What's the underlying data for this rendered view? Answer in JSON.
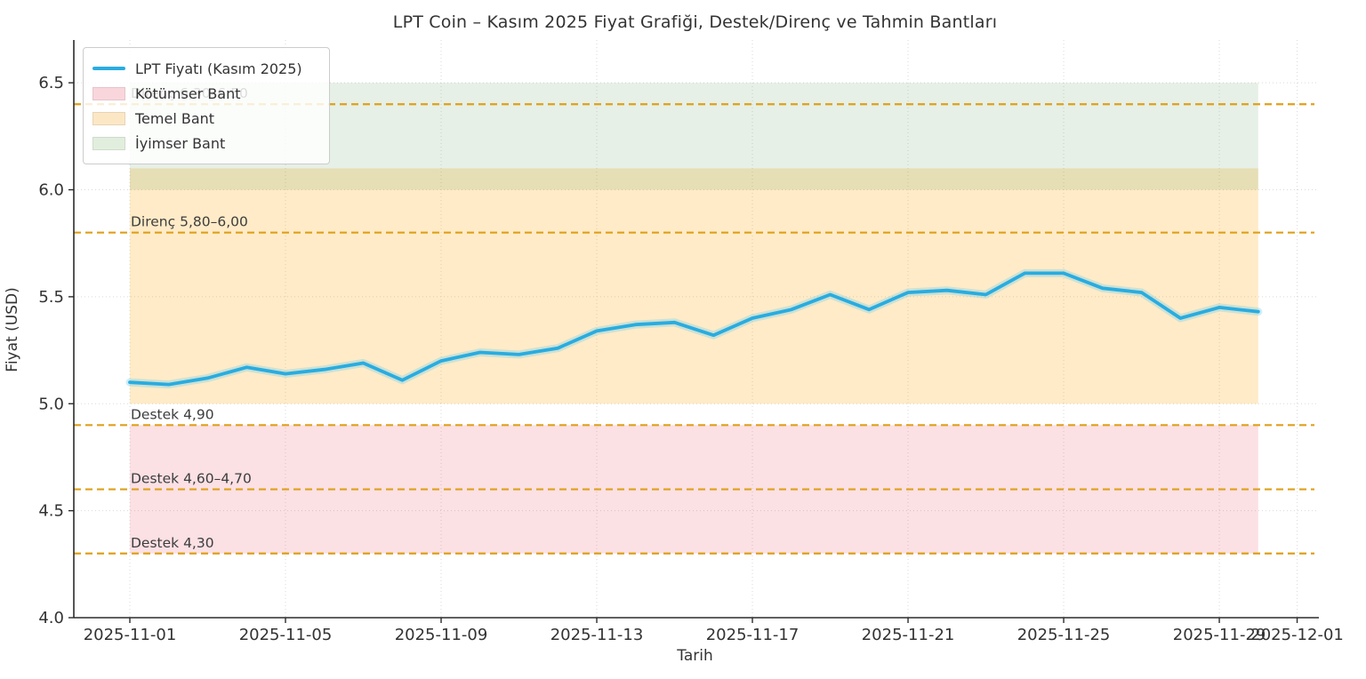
{
  "chart_data": {
    "type": "line",
    "title": "LPT Coin – Kasım 2025 Fiyat Grafiği, Destek/Direnç ve Tahmin Bantları",
    "xlabel": "Tarih",
    "ylabel": "Fiyat (USD)",
    "grid": true,
    "legend_position": "upper-left",
    "ylim": [
      4.0,
      6.7
    ],
    "y_tick_labels": [
      "4.0",
      "4.5",
      "5.0",
      "5.5",
      "6.0",
      "6.5"
    ],
    "y_tick_values": [
      4.0,
      4.5,
      5.0,
      5.5,
      6.0,
      6.5
    ],
    "x_tick_labels": [
      "2025-11-01",
      "2025-11-05",
      "2025-11-09",
      "2025-11-13",
      "2025-11-17",
      "2025-11-21",
      "2025-11-25",
      "2025-11-29",
      "2025-12-01"
    ],
    "x_tick_days": [
      0,
      4,
      8,
      12,
      16,
      20,
      24,
      28,
      30
    ],
    "series": [
      {
        "name": "LPT Fiyatı (Kasım 2025)",
        "color": "#29ace0",
        "halo_color": "rgba(110,205,238,0.35)",
        "dates": [
          "2025-11-01",
          "2025-11-02",
          "2025-11-03",
          "2025-11-04",
          "2025-11-05",
          "2025-11-06",
          "2025-11-07",
          "2025-11-08",
          "2025-11-09",
          "2025-11-10",
          "2025-11-11",
          "2025-11-12",
          "2025-11-13",
          "2025-11-14",
          "2025-11-15",
          "2025-11-16",
          "2025-11-17",
          "2025-11-18",
          "2025-11-19",
          "2025-11-20",
          "2025-11-21",
          "2025-11-22",
          "2025-11-23",
          "2025-11-24",
          "2025-11-25",
          "2025-11-26",
          "2025-11-27",
          "2025-11-28",
          "2025-11-29",
          "2025-11-30"
        ],
        "values": [
          5.1,
          5.09,
          5.12,
          5.17,
          5.14,
          5.16,
          5.19,
          5.11,
          5.2,
          5.24,
          5.23,
          5.26,
          5.34,
          5.37,
          5.38,
          5.32,
          5.4,
          5.44,
          5.51,
          5.44,
          5.52,
          5.53,
          5.51,
          5.61,
          5.61,
          5.54,
          5.52,
          5.4,
          5.45,
          5.43
        ]
      }
    ],
    "bands": [
      {
        "name": "Kötümser Bant",
        "from": 4.3,
        "to": 4.9,
        "fill": "rgba(230,60,90,0.16)",
        "swatch": "#f9d6dc"
      },
      {
        "name": "Temel Bant",
        "from": 5.0,
        "to": 6.1,
        "fill": "rgba(255,166,0,0.22)",
        "swatch": "#fce7c5"
      },
      {
        "name": "İyimser Bant",
        "from": 6.0,
        "to": 6.5,
        "fill": "rgba(60,140,60,0.13)",
        "swatch": "#e2eedd"
      }
    ],
    "hlines": [
      {
        "value": 6.4,
        "label": "Direnç 6,30–6,50"
      },
      {
        "value": 5.8,
        "label": "Direnç 5,80–6,00"
      },
      {
        "value": 4.9,
        "label": "Destek 4,90"
      },
      {
        "value": 4.6,
        "label": "Destek 4,60–4,70"
      },
      {
        "value": 4.3,
        "label": "Destek 4,30"
      }
    ],
    "hline_color": "#dfa01a",
    "annotation_color": "#3d3d3d",
    "grid_color": "#d9d9d9",
    "spine_color": "#2b2b2b",
    "tick_label_color": "#333333"
  }
}
